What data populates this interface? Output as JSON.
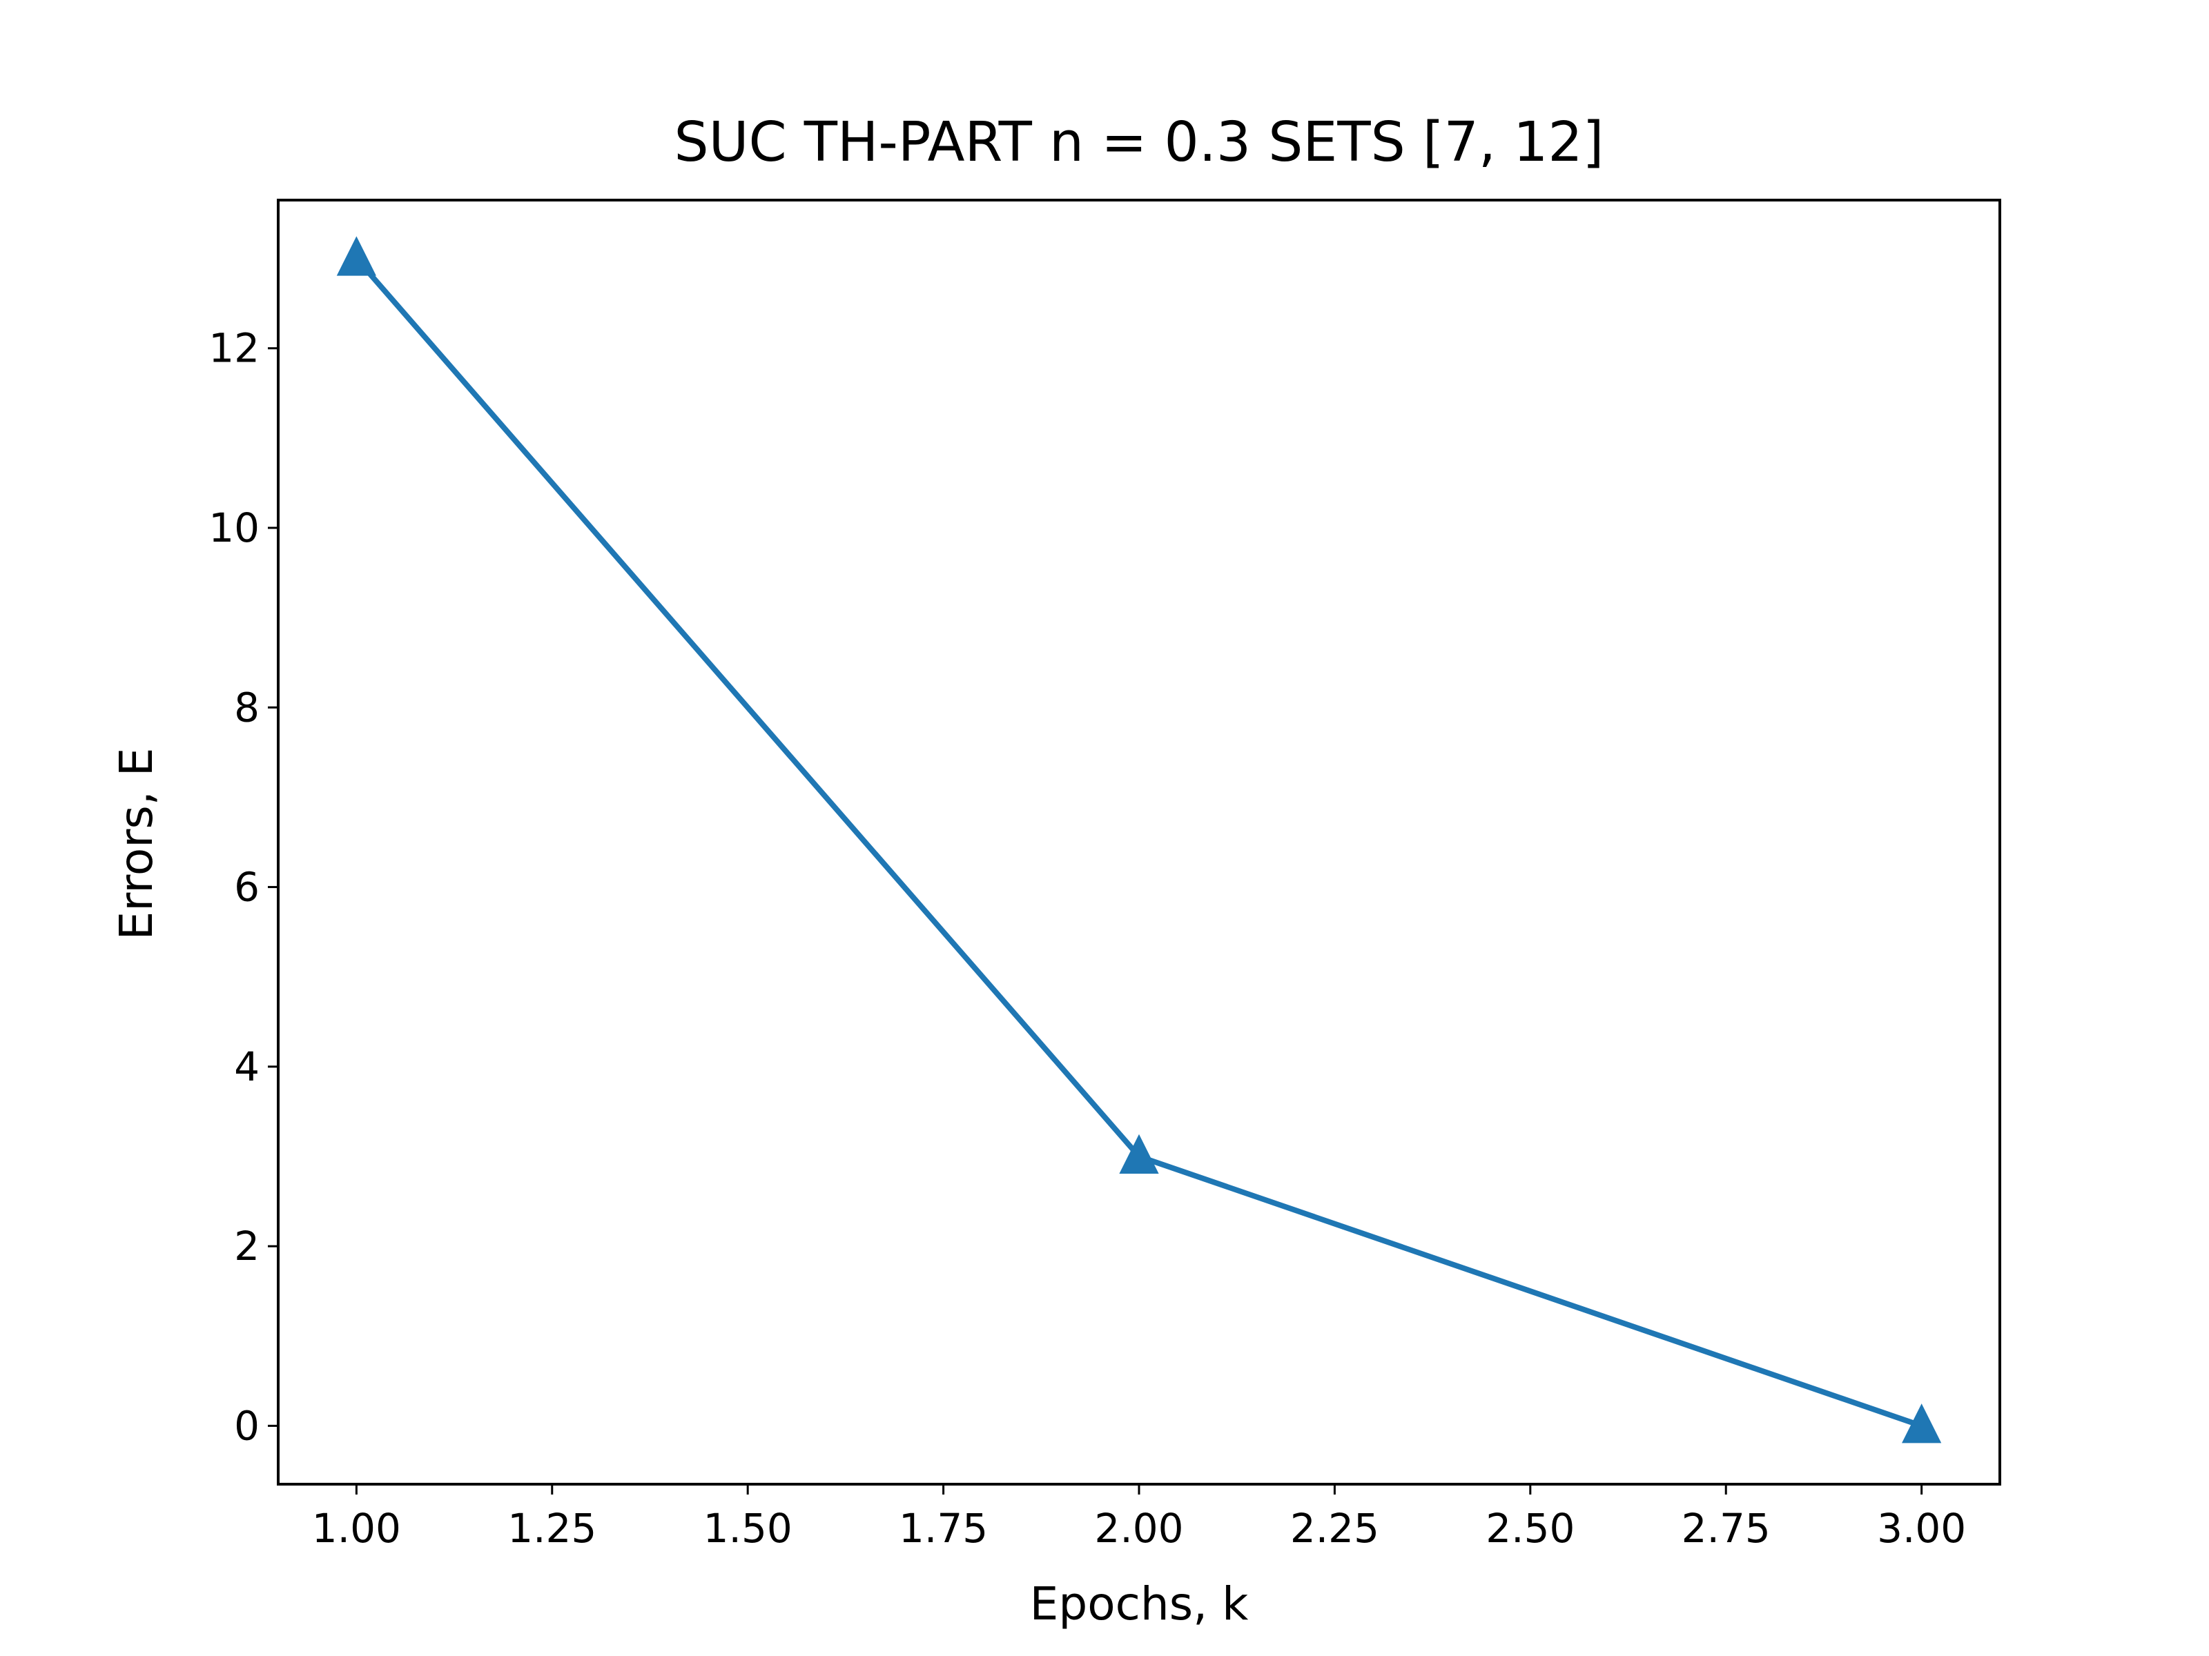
{
  "chart_data": {
    "type": "line",
    "title": "SUC TH-PART n = 0.3 SETS [7, 12]",
    "xlabel": "Epochs, k",
    "ylabel": "Errors, E",
    "xlim": [
      0.9,
      3.1
    ],
    "ylim": [
      -0.65,
      13.65
    ],
    "xticks": [
      1.0,
      1.25,
      1.5,
      1.75,
      2.0,
      2.25,
      2.5,
      2.75,
      3.0
    ],
    "xtick_labels": [
      "1.00",
      "1.25",
      "1.50",
      "1.75",
      "2.00",
      "2.25",
      "2.50",
      "2.75",
      "3.00"
    ],
    "yticks": [
      0,
      2,
      4,
      6,
      8,
      10,
      12
    ],
    "ytick_labels": [
      "0",
      "2",
      "4",
      "6",
      "8",
      "10",
      "12"
    ],
    "grid": false,
    "legend": "none",
    "series": [
      {
        "color": "#1f77b4",
        "marker": "triangle-up",
        "x": [
          1,
          2,
          3
        ],
        "y": [
          13,
          3,
          0
        ]
      }
    ]
  },
  "colors": {
    "series": "#1f77b4",
    "axes": "#000000",
    "background": "#ffffff"
  }
}
